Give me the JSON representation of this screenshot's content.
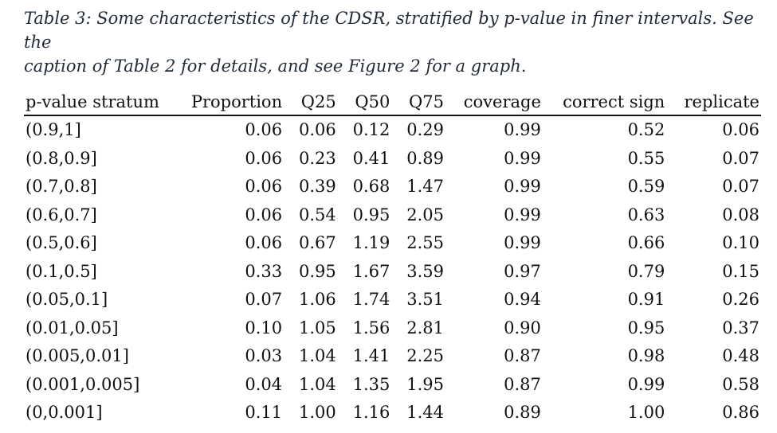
{
  "caption": {
    "line1": "Table 3: Some characteristics of the CDSR, stratified by p-value in finer intervals. See the",
    "line2": "caption of Table 2 for details, and see Figure 2 for a graph."
  },
  "table": {
    "headers": [
      "p-value stratum",
      "Proportion",
      "Q25",
      "Q50",
      "Q75",
      "coverage",
      "correct sign",
      "replicate"
    ],
    "rows": [
      [
        "(0.9,1]",
        "0.06",
        "0.06",
        "0.12",
        "0.29",
        "0.99",
        "0.52",
        "0.06"
      ],
      [
        "(0.8,0.9]",
        "0.06",
        "0.23",
        "0.41",
        "0.89",
        "0.99",
        "0.55",
        "0.07"
      ],
      [
        "(0.7,0.8]",
        "0.06",
        "0.39",
        "0.68",
        "1.47",
        "0.99",
        "0.59",
        "0.07"
      ],
      [
        "(0.6,0.7]",
        "0.06",
        "0.54",
        "0.95",
        "2.05",
        "0.99",
        "0.63",
        "0.08"
      ],
      [
        "(0.5,0.6]",
        "0.06",
        "0.67",
        "1.19",
        "2.55",
        "0.99",
        "0.66",
        "0.10"
      ],
      [
        "(0.1,0.5]",
        "0.33",
        "0.95",
        "1.67",
        "3.59",
        "0.97",
        "0.79",
        "0.15"
      ],
      [
        "(0.05,0.1]",
        "0.07",
        "1.06",
        "1.74",
        "3.51",
        "0.94",
        "0.91",
        "0.26"
      ],
      [
        "(0.01,0.05]",
        "0.10",
        "1.05",
        "1.56",
        "2.81",
        "0.90",
        "0.95",
        "0.37"
      ],
      [
        "(0.005,0.01]",
        "0.03",
        "1.04",
        "1.41",
        "2.25",
        "0.87",
        "0.98",
        "0.48"
      ],
      [
        "(0.001,0.005]",
        "0.04",
        "1.04",
        "1.35",
        "1.95",
        "0.87",
        "0.99",
        "0.58"
      ],
      [
        "(0,0.001]",
        "0.11",
        "1.00",
        "1.16",
        "1.44",
        "0.89",
        "1.00",
        "0.86"
      ]
    ]
  },
  "colors": {
    "caption": "#1f2b3a",
    "text": "#111111",
    "rule": "#111111"
  }
}
